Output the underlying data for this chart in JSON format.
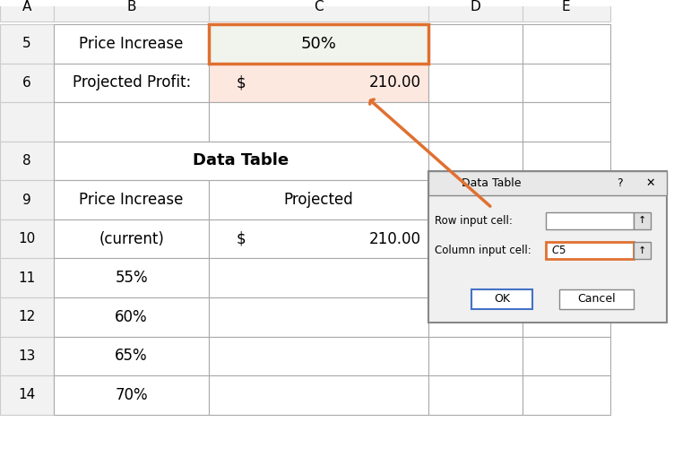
{
  "bg_color": "#ffffff",
  "cell_row5_c_bg": "#f0f4ec",
  "cell_row5_c_border": "#e07030",
  "cell_row6_c_bg": "#fde8e0",
  "dialog_title": "Data Table",
  "dialog_row_label": "Row input cell:",
  "dialog_col_label": "Column input cell:",
  "dialog_col_value": "$C$5",
  "dialog_btn1": "OK",
  "dialog_btn2": "Cancel",
  "arrow_color": "#e07030",
  "pct_labels": [
    "55%",
    "60%",
    "65%",
    "70%"
  ]
}
